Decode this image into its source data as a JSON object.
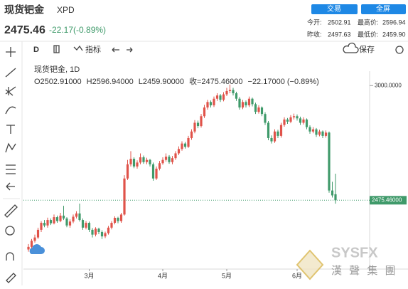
{
  "header": {
    "title": "现货钯金",
    "symbol": "XPD",
    "price": "2475.46",
    "change": "-22.17(-0.89%)",
    "trade_button": "交易",
    "fullscreen_button": "全屏",
    "open_label": "今开:",
    "open": "2502.91",
    "high_label": "最高价:",
    "high": "2596.94",
    "prev_close_label": "昨收:",
    "prev_close": "2497.63",
    "low_label": "最低价:",
    "low": "2459.90"
  },
  "toolbar": {
    "interval": "D",
    "indicators": "指标",
    "save": "保存"
  },
  "chart_data": {
    "type": "candlestick",
    "legend_title": "现货钯金, 1D",
    "legend_values": [
      "O2502.91000",
      "H2596.94000",
      "L2459.90000",
      "收=2475.46000",
      "−22.17000 (−0.89%)"
    ],
    "up_color": "#e0534a",
    "down_color": "#3f9a6a",
    "ylim": [
      2180,
      3040
    ],
    "yticks": [
      {
        "value": 3000,
        "label": "3000.0000"
      }
    ],
    "last_price": {
      "value": 2475.46,
      "label": "2475.46000"
    },
    "watermark": "漢 聲 集 團",
    "categories": [
      null,
      null,
      null,
      null,
      null,
      null,
      null,
      null,
      null,
      null,
      null,
      null,
      null,
      null,
      null,
      null,
      null,
      null,
      null,
      "3月",
      null,
      null,
      null,
      null,
      null,
      null,
      null,
      null,
      null,
      null,
      null,
      null,
      null,
      null,
      null,
      null,
      null,
      null,
      null,
      null,
      null,
      null,
      "4月",
      null,
      null,
      null,
      null,
      null,
      null,
      null,
      null,
      null,
      null,
      null,
      null,
      null,
      null,
      null,
      null,
      null,
      null,
      null,
      "5月",
      null,
      null,
      null,
      null,
      null,
      null,
      null,
      null,
      null,
      null,
      null,
      null,
      null,
      null,
      null,
      null,
      null,
      null,
      null,
      null,
      null,
      "6月",
      null,
      null,
      null,
      null,
      null,
      null,
      null,
      null,
      null,
      null,
      null,
      null
    ],
    "open": [
      2250,
      2262,
      2290,
      2305,
      2340,
      2372,
      2360,
      2385,
      2370,
      2398,
      2380,
      2405,
      2392,
      2360,
      2378,
      2400,
      2415,
      2385,
      2350,
      2372,
      2340,
      2318,
      2345,
      2330,
      2310,
      2325,
      2350,
      2372,
      2395,
      2380,
      2410,
      2575,
      2640,
      2665,
      2630,
      2648,
      2672,
      2650,
      2660,
      2640,
      2575,
      2620,
      2645,
      2660,
      2675,
      2650,
      2668,
      2690,
      2710,
      2735,
      2720,
      2760,
      2790,
      2830,
      2815,
      2860,
      2900,
      2925,
      2910,
      2940,
      2955,
      2935,
      2960,
      2975,
      2980,
      2965,
      2940,
      2900,
      2925,
      2910,
      2940,
      2915,
      2880,
      2900,
      2870,
      2830,
      2760,
      2745,
      2790,
      2770,
      2820,
      2845,
      2835,
      2855,
      2860,
      2850,
      2830,
      2845,
      2810,
      2790,
      2800,
      2775,
      2790,
      2770,
      2785,
      2520,
      2502.91
    ],
    "high": [
      2275,
      2298,
      2318,
      2350,
      2380,
      2385,
      2396,
      2392,
      2410,
      2405,
      2418,
      2450,
      2398,
      2388,
      2410,
      2425,
      2460,
      2392,
      2380,
      2378,
      2348,
      2352,
      2350,
      2338,
      2332,
      2358,
      2380,
      2402,
      2400,
      2418,
      2590,
      2660,
      2700,
      2672,
      2658,
      2690,
      2680,
      2670,
      2665,
      2648,
      2630,
      2655,
      2672,
      2690,
      2682,
      2678,
      2700,
      2722,
      2745,
      2742,
      2770,
      2800,
      2842,
      2840,
      2870,
      2912,
      2935,
      2932,
      2950,
      2965,
      2962,
      2970,
      2990,
      3005,
      2990,
      2972,
      2948,
      2935,
      2932,
      2950,
      2945,
      2922,
      2910,
      2905,
      2878,
      2838,
      2772,
      2800,
      2798,
      2830,
      2855,
      2852,
      2865,
      2872,
      2868,
      2858,
      2855,
      2850,
      2818,
      2810,
      2806,
      2798,
      2795,
      2795,
      2790,
      2560,
      2596.94
    ],
    "low": [
      2240,
      2255,
      2282,
      2298,
      2330,
      2352,
      2350,
      2362,
      2365,
      2372,
      2375,
      2385,
      2352,
      2350,
      2370,
      2392,
      2378,
      2340,
      2342,
      2330,
      2305,
      2310,
      2320,
      2298,
      2302,
      2318,
      2342,
      2365,
      2370,
      2372,
      2405,
      2568,
      2630,
      2622,
      2620,
      2640,
      2642,
      2640,
      2630,
      2565,
      2568,
      2612,
      2638,
      2652,
      2642,
      2640,
      2660,
      2682,
      2702,
      2712,
      2715,
      2752,
      2782,
      2805,
      2808,
      2852,
      2890,
      2900,
      2902,
      2930,
      2925,
      2928,
      2952,
      2965,
      2955,
      2930,
      2890,
      2892,
      2900,
      2902,
      2905,
      2870,
      2872,
      2860,
      2820,
      2750,
      2735,
      2738,
      2760,
      2762,
      2812,
      2825,
      2828,
      2845,
      2840,
      2820,
      2822,
      2800,
      2780,
      2782,
      2765,
      2768,
      2760,
      2762,
      2510,
      2488,
      2459.9
    ],
    "close": [
      2262,
      2290,
      2305,
      2340,
      2372,
      2360,
      2385,
      2370,
      2398,
      2380,
      2405,
      2392,
      2360,
      2378,
      2400,
      2415,
      2385,
      2350,
      2372,
      2340,
      2318,
      2345,
      2330,
      2310,
      2325,
      2350,
      2372,
      2395,
      2380,
      2410,
      2575,
      2640,
      2665,
      2630,
      2648,
      2672,
      2650,
      2660,
      2640,
      2575,
      2620,
      2645,
      2660,
      2675,
      2650,
      2668,
      2690,
      2710,
      2735,
      2720,
      2760,
      2790,
      2830,
      2815,
      2860,
      2900,
      2925,
      2910,
      2940,
      2955,
      2935,
      2960,
      2975,
      2980,
      2965,
      2940,
      2900,
      2925,
      2910,
      2940,
      2915,
      2880,
      2900,
      2870,
      2830,
      2760,
      2745,
      2790,
      2770,
      2820,
      2845,
      2835,
      2855,
      2860,
      2850,
      2830,
      2845,
      2810,
      2790,
      2800,
      2775,
      2790,
      2770,
      2785,
      2520,
      2497.63,
      2475.46
    ]
  }
}
